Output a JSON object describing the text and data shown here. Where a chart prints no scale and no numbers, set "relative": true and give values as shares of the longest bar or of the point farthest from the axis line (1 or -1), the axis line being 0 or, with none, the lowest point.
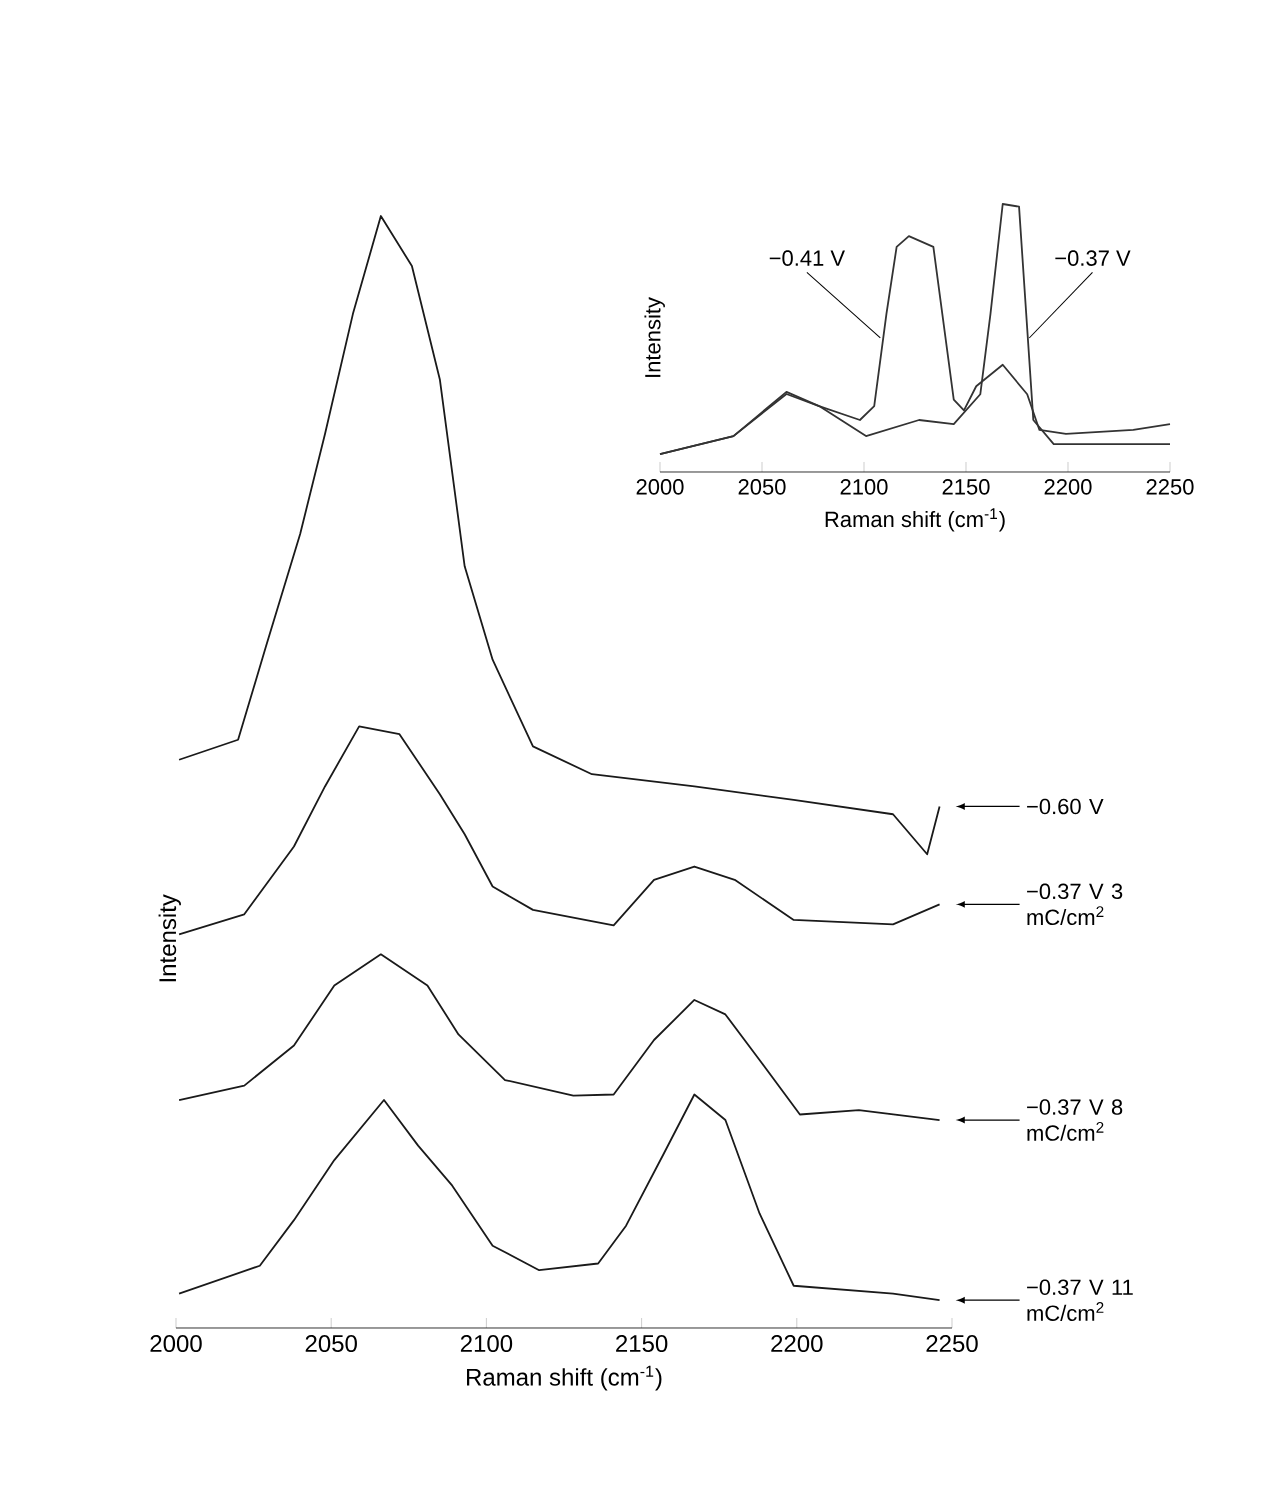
{
  "chart_data": [
    {
      "type": "line",
      "relative": true,
      "xlabel": "Raman shift (cm$^{-1}$)",
      "ylabel": "Intensity",
      "xlim": [
        2000,
        2250
      ],
      "xticks": [
        2000,
        2050,
        2100,
        2150,
        2200,
        2250
      ],
      "series": [
        {
          "name": "−0.60 V",
          "color": "#1a1a1a",
          "x": [
            2001,
            2020,
            2029,
            2040,
            2048,
            2057,
            2066,
            2076,
            2085,
            2093,
            2102,
            2115,
            2134,
            2167,
            2199,
            2231,
            2242,
            2246
          ],
          "values": [
            0.511,
            0.529,
            0.613,
            0.714,
            0.804,
            0.912,
            1.0,
            0.955,
            0.853,
            0.685,
            0.601,
            0.523,
            0.498,
            0.487,
            0.475,
            0.462,
            0.426,
            0.469
          ]
        },
        {
          "name": "−0.37 V 3 mC/cm$^{2}$",
          "color": "#1a1a1a",
          "x": [
            2001,
            2022,
            2038,
            2048,
            2059,
            2072,
            2085,
            2093,
            2102,
            2115,
            2141,
            2154,
            2167,
            2180,
            2199,
            2231,
            2246
          ],
          "values": [
            0.354,
            0.372,
            0.433,
            0.487,
            0.541,
            0.534,
            0.48,
            0.444,
            0.397,
            0.376,
            0.362,
            0.403,
            0.415,
            0.403,
            0.367,
            0.363,
            0.381
          ]
        },
        {
          "name": "−0.37 V 8 mC/cm$^{2}$",
          "color": "#1a1a1a",
          "x": [
            2001,
            2022,
            2038,
            2051,
            2066,
            2081,
            2091,
            2106,
            2128,
            2141,
            2154,
            2167,
            2177,
            2188,
            2201,
            2220,
            2246
          ],
          "values": [
            0.205,
            0.218,
            0.254,
            0.308,
            0.336,
            0.308,
            0.264,
            0.223,
            0.209,
            0.21,
            0.259,
            0.295,
            0.282,
            0.241,
            0.192,
            0.196,
            0.187
          ]
        },
        {
          "name": "−0.37 V 11 mC/cm$^{2}$",
          "color": "#1a1a1a",
          "x": [
            2001,
            2027,
            2038,
            2051,
            2067,
            2078,
            2089,
            2102,
            2117,
            2136,
            2145,
            2157,
            2167,
            2177,
            2188,
            2199,
            2231,
            2246
          ],
          "values": [
            0.031,
            0.056,
            0.097,
            0.151,
            0.205,
            0.164,
            0.128,
            0.074,
            0.052,
            0.058,
            0.092,
            0.156,
            0.21,
            0.187,
            0.103,
            0.038,
            0.031,
            0.025
          ]
        }
      ]
    },
    {
      "type": "line",
      "relative": true,
      "xlabel": "Raman shift (cm$^{-1}$)",
      "ylabel": "Intensity",
      "xlim": [
        2000,
        2250
      ],
      "xticks": [
        2000,
        2050,
        2100,
        2150,
        2200,
        2250
      ],
      "series": [
        {
          "name": "−0.41 V",
          "color": "#333333",
          "x": [
            2000,
            2036,
            2062,
            2078,
            2098,
            2105,
            2111,
            2116,
            2122,
            2134,
            2144,
            2149,
            2155,
            2168,
            2180,
            2186,
            2199,
            2232,
            2250
          ],
          "values": [
            0.067,
            0.134,
            0.291,
            0.246,
            0.194,
            0.246,
            0.59,
            0.84,
            0.88,
            0.84,
            0.27,
            0.23,
            0.32,
            0.4,
            0.29,
            0.157,
            0.142,
            0.157,
            0.179
          ]
        },
        {
          "name": "−0.37 V",
          "color": "#333333",
          "x": [
            2000,
            2036,
            2062,
            2078,
            2101,
            2127,
            2144,
            2157,
            2162,
            2168,
            2176,
            2183,
            2193,
            2232,
            2250
          ],
          "values": [
            0.067,
            0.134,
            0.299,
            0.246,
            0.134,
            0.194,
            0.179,
            0.29,
            0.59,
            1.0,
            0.99,
            0.194,
            0.104,
            0.104,
            0.104
          ]
        }
      ]
    }
  ]
}
